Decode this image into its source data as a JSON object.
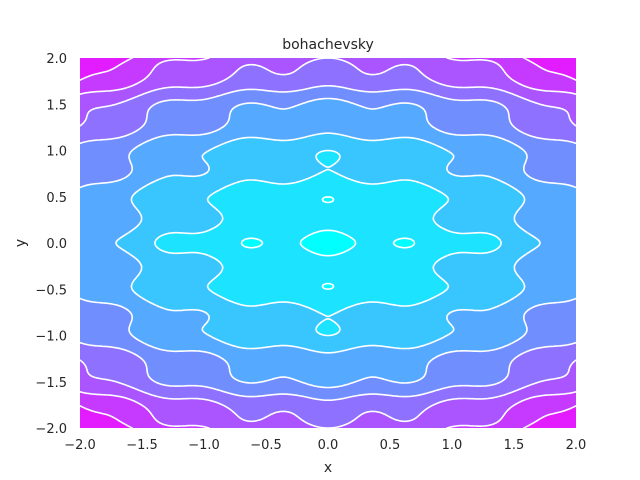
{
  "chart_data": {
    "type": "contour",
    "title": "bohachevsky",
    "xlabel": "x",
    "ylabel": "y",
    "xlim": [
      -2.0,
      2.0
    ],
    "ylim": [
      -2.0,
      2.0
    ],
    "function": "x^2 + 2y^2 - 0.3cos(3πx) - 0.4cos(4πy) + 0.7",
    "levels": [
      0.5,
      2.0,
      3.5,
      5.0,
      6.5,
      8.0,
      9.5,
      11.0,
      12.5
    ],
    "colormap": "cool",
    "contour_line_color": "#ffffff",
    "grid": false,
    "xticks": [
      "−2.0",
      "−1.5",
      "−1.0",
      "−0.5",
      "0.0",
      "0.5",
      "1.0",
      "1.5",
      "2.0"
    ],
    "yticks": [
      "−2.0",
      "−1.5",
      "−1.0",
      "−0.5",
      "0.0",
      "0.5",
      "1.0",
      "1.5",
      "2.0"
    ],
    "xtick_values": [
      -2.0,
      -1.5,
      -1.0,
      -0.5,
      0.0,
      0.5,
      1.0,
      1.5,
      2.0
    ],
    "ytick_values": [
      -2.0,
      -1.5,
      -1.0,
      -0.5,
      0.0,
      0.5,
      1.0,
      1.5,
      2.0
    ]
  }
}
